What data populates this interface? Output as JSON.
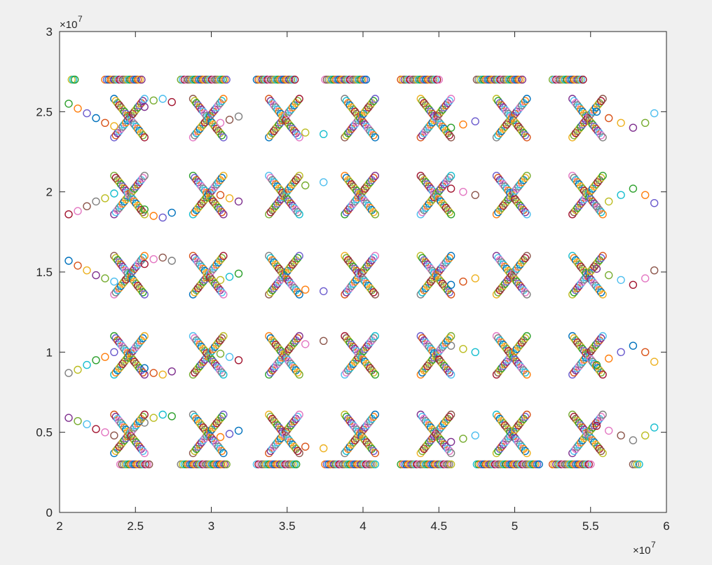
{
  "chart_data": {
    "type": "scatter",
    "title": "",
    "xlabel": "",
    "ylabel": "",
    "xlim": [
      20000000,
      60000000
    ],
    "ylim": [
      0,
      30000000
    ],
    "x_ticks": [
      20000000,
      25000000,
      30000000,
      35000000,
      40000000,
      45000000,
      50000000,
      55000000,
      60000000
    ],
    "x_tick_labels": [
      "2",
      "2.5",
      "3",
      "3.5",
      "4",
      "4.5",
      "5",
      "5.5",
      "6"
    ],
    "y_ticks": [
      0,
      5000000,
      10000000,
      15000000,
      20000000,
      25000000,
      30000000
    ],
    "y_tick_labels": [
      "0",
      "0.5",
      "1",
      "1.5",
      "2",
      "2.5",
      "3"
    ],
    "x_exponent_label": {
      "base": "×10",
      "exponent": "7"
    },
    "y_exponent_label": {
      "base": "×10",
      "exponent": "7"
    },
    "grid": false,
    "legend": "none",
    "marker": "open-circle",
    "palette": [
      "#0072bd",
      "#d95319",
      "#edb120",
      "#7e2f8e",
      "#77ac30",
      "#4dbeee",
      "#a2142f",
      "#e377c2",
      "#8c564b",
      "#7f7f7f",
      "#bcbd22",
      "#17becf",
      "#2ca02c",
      "#ff7f0e",
      "#6a5acd"
    ],
    "cross_centers_x": [
      24600000,
      29800000,
      34800000,
      39800000,
      44800000,
      49800000,
      54800000
    ],
    "cross_centers_y": [
      4900000,
      9800000,
      14800000,
      19800000,
      24600000
    ],
    "cross_half_width": 1000000,
    "cross_half_height": 1200000,
    "top_row": {
      "y": 27000000,
      "segments": [
        [
          20800000,
          21000000
        ],
        [
          23000000,
          25400000
        ],
        [
          28000000,
          31000000
        ],
        [
          33000000,
          35500000
        ],
        [
          37500000,
          40200000
        ],
        [
          42500000,
          45000000
        ],
        [
          47500000,
          50500000
        ],
        [
          52500000,
          54500000
        ]
      ]
    },
    "bottom_row": {
      "y": 3000000,
      "segments": [
        [
          24000000,
          25900000
        ],
        [
          28000000,
          31000000
        ],
        [
          33000000,
          35600000
        ],
        [
          37500000,
          40800000
        ],
        [
          42500000,
          45800000
        ],
        [
          47500000,
          51600000
        ],
        [
          52500000,
          55000000
        ],
        [
          57800000,
          58200000
        ]
      ]
    },
    "connector_points": [
      [
        20600000,
        25500000
      ],
      [
        21200000,
        25200000
      ],
      [
        21800000,
        24900000
      ],
      [
        22400000,
        24600000
      ],
      [
        23000000,
        24300000
      ],
      [
        23600000,
        24100000
      ],
      [
        25600000,
        25300000
      ],
      [
        26200000,
        25700000
      ],
      [
        26800000,
        25800000
      ],
      [
        27400000,
        25600000
      ],
      [
        30600000,
        24300000
      ],
      [
        31200000,
        24500000
      ],
      [
        31800000,
        24700000
      ],
      [
        36200000,
        23700000
      ],
      [
        37400000,
        23600000
      ],
      [
        45800000,
        24000000
      ],
      [
        46600000,
        24200000
      ],
      [
        47400000,
        24400000
      ],
      [
        55400000,
        25000000
      ],
      [
        56200000,
        24600000
      ],
      [
        57000000,
        24300000
      ],
      [
        57800000,
        24000000
      ],
      [
        58600000,
        24300000
      ],
      [
        59200000,
        24900000
      ],
      [
        20600000,
        18600000
      ],
      [
        21200000,
        18800000
      ],
      [
        21800000,
        19100000
      ],
      [
        22400000,
        19400000
      ],
      [
        23000000,
        19600000
      ],
      [
        23600000,
        19900000
      ],
      [
        25600000,
        18900000
      ],
      [
        26200000,
        18500000
      ],
      [
        26800000,
        18400000
      ],
      [
        27400000,
        18700000
      ],
      [
        30600000,
        19800000
      ],
      [
        31200000,
        19600000
      ],
      [
        31800000,
        19400000
      ],
      [
        36200000,
        20400000
      ],
      [
        37400000,
        20600000
      ],
      [
        45800000,
        20200000
      ],
      [
        46600000,
        20000000
      ],
      [
        47400000,
        19800000
      ],
      [
        55400000,
        19100000
      ],
      [
        56200000,
        19400000
      ],
      [
        57000000,
        19800000
      ],
      [
        57800000,
        20200000
      ],
      [
        58600000,
        19800000
      ],
      [
        59200000,
        19300000
      ],
      [
        20600000,
        15700000
      ],
      [
        21200000,
        15400000
      ],
      [
        21800000,
        15100000
      ],
      [
        22400000,
        14800000
      ],
      [
        23000000,
        14600000
      ],
      [
        23600000,
        14400000
      ],
      [
        25600000,
        15500000
      ],
      [
        26200000,
        15800000
      ],
      [
        26800000,
        15900000
      ],
      [
        27400000,
        15700000
      ],
      [
        30600000,
        14500000
      ],
      [
        31200000,
        14700000
      ],
      [
        31800000,
        14900000
      ],
      [
        36200000,
        13900000
      ],
      [
        37400000,
        13800000
      ],
      [
        45800000,
        14200000
      ],
      [
        46600000,
        14400000
      ],
      [
        47400000,
        14600000
      ],
      [
        55400000,
        15200000
      ],
      [
        56200000,
        14800000
      ],
      [
        57000000,
        14500000
      ],
      [
        57800000,
        14200000
      ],
      [
        58600000,
        14600000
      ],
      [
        59200000,
        15100000
      ],
      [
        20600000,
        8700000
      ],
      [
        21200000,
        8900000
      ],
      [
        21800000,
        9200000
      ],
      [
        22400000,
        9500000
      ],
      [
        23000000,
        9700000
      ],
      [
        23600000,
        10000000
      ],
      [
        25600000,
        9000000
      ],
      [
        26200000,
        8700000
      ],
      [
        26800000,
        8600000
      ],
      [
        27400000,
        8800000
      ],
      [
        30600000,
        9900000
      ],
      [
        31200000,
        9700000
      ],
      [
        31800000,
        9500000
      ],
      [
        36200000,
        10500000
      ],
      [
        37400000,
        10700000
      ],
      [
        45800000,
        10400000
      ],
      [
        46600000,
        10200000
      ],
      [
        47400000,
        10000000
      ],
      [
        55400000,
        9200000
      ],
      [
        56200000,
        9600000
      ],
      [
        57000000,
        10000000
      ],
      [
        57800000,
        10400000
      ],
      [
        58600000,
        10000000
      ],
      [
        59200000,
        9400000
      ],
      [
        20600000,
        5900000
      ],
      [
        21200000,
        5700000
      ],
      [
        21800000,
        5500000
      ],
      [
        22400000,
        5200000
      ],
      [
        23000000,
        5000000
      ],
      [
        23600000,
        4800000
      ],
      [
        25600000,
        5600000
      ],
      [
        26200000,
        5900000
      ],
      [
        26800000,
        6100000
      ],
      [
        27400000,
        6000000
      ],
      [
        30600000,
        4700000
      ],
      [
        31200000,
        4900000
      ],
      [
        31800000,
        5100000
      ],
      [
        36200000,
        4100000
      ],
      [
        37400000,
        4000000
      ],
      [
        45800000,
        4400000
      ],
      [
        46600000,
        4600000
      ],
      [
        47400000,
        4800000
      ],
      [
        55400000,
        5400000
      ],
      [
        56200000,
        5100000
      ],
      [
        57000000,
        4800000
      ],
      [
        57800000,
        4500000
      ],
      [
        58600000,
        4800000
      ],
      [
        59200000,
        5300000
      ]
    ]
  }
}
